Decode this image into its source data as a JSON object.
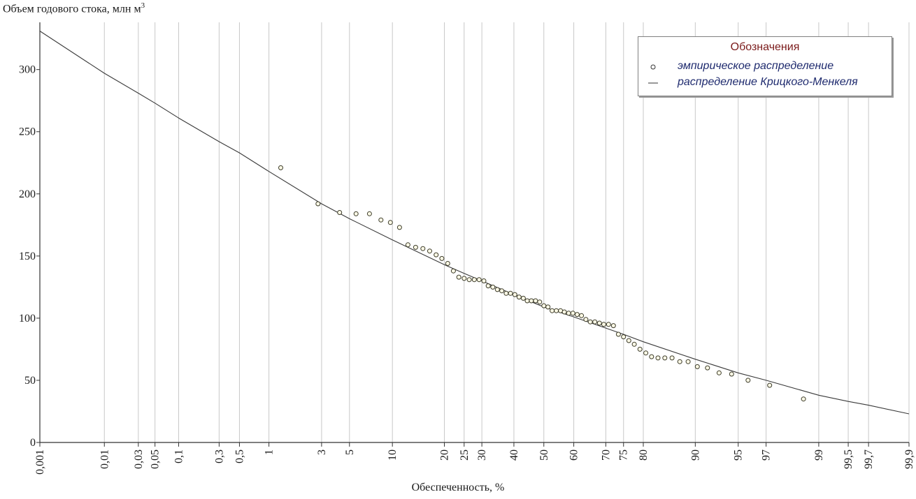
{
  "chart_data": {
    "type": "scatter",
    "ylabel": "Объем годового стока, млн  м",
    "ylabel_sup": "3",
    "xlabel": "Обеспеченность, %",
    "x_scale": "probability (normal)",
    "x_ticks": [
      "0,001",
      "0,01",
      "0,03",
      "0,05",
      "0,1",
      "0,3",
      "0,5",
      "1",
      "3",
      "5",
      "10",
      "20",
      "25",
      "30",
      "40",
      "50",
      "60",
      "70",
      "75",
      "80",
      "90",
      "95",
      "97",
      "99",
      "99,5",
      "99,7",
      "99,9"
    ],
    "x_tick_values": [
      0.001,
      0.01,
      0.03,
      0.05,
      0.1,
      0.3,
      0.5,
      1,
      3,
      5,
      10,
      20,
      25,
      30,
      40,
      50,
      60,
      70,
      75,
      80,
      90,
      95,
      97,
      99,
      99.5,
      99.7,
      99.9
    ],
    "y_ticks": [
      "0",
      "50",
      "100",
      "150",
      "200",
      "250",
      "300"
    ],
    "ylim": [
      0,
      338
    ],
    "grid": "vertical",
    "legend": {
      "title": "Обозначения",
      "position": "top-right",
      "entries": [
        "эмпирическое распределение",
        "распределение Крицкого-Менкеля"
      ]
    },
    "series": [
      {
        "name": "эмпирическое распределение",
        "kind": "points",
        "x": [
          1.3,
          2.8,
          4.2,
          5.6,
          7,
          8.4,
          9.7,
          11.1,
          12.5,
          13.9,
          15.3,
          16.7,
          18.1,
          19.4,
          20.8,
          22.2,
          23.6,
          25,
          26.4,
          27.8,
          29.2,
          30.6,
          31.9,
          33.3,
          34.7,
          36.1,
          37.5,
          38.9,
          40.3,
          41.7,
          43.1,
          44.4,
          45.8,
          47.2,
          48.6,
          50,
          51.4,
          52.8,
          54.2,
          55.6,
          56.9,
          58.3,
          59.7,
          61.1,
          62.5,
          63.9,
          65.3,
          66.7,
          68.1,
          69.4,
          70.8,
          72.2,
          73.6,
          75,
          76.4,
          77.8,
          79.2,
          80.6,
          81.9,
          83.3,
          84.7,
          86.1,
          87.5,
          88.9,
          90.3,
          91.7,
          93.1,
          94.4,
          95.8,
          97.2,
          98.6
        ],
        "y": [
          221,
          192,
          185,
          184,
          184,
          179,
          177,
          173,
          159,
          157,
          156,
          154,
          151,
          148,
          144,
          138,
          133,
          132,
          131,
          131,
          131,
          130,
          126,
          125,
          123,
          122,
          120,
          120,
          119,
          117,
          116,
          114,
          114,
          114,
          113,
          110,
          109,
          106,
          106,
          106,
          105,
          104,
          104,
          103,
          102,
          99,
          97,
          97,
          96,
          95,
          95,
          94,
          87,
          85,
          82,
          79,
          75,
          72,
          69,
          68,
          68,
          68,
          65,
          65,
          61,
          60,
          56,
          55,
          50,
          46,
          35
        ]
      },
      {
        "name": "распределение Крицкого-Менкеля",
        "kind": "line",
        "x": [
          0.001,
          0.01,
          0.03,
          0.05,
          0.1,
          0.3,
          0.5,
          1,
          3,
          5,
          10,
          20,
          25,
          30,
          40,
          50,
          60,
          70,
          75,
          80,
          90,
          95,
          97,
          99,
          99.5,
          99.7,
          99.9
        ],
        "y": [
          331,
          297,
          281,
          273,
          261,
          242,
          233,
          218,
          192,
          180,
          163,
          143,
          136,
          130,
          119,
          109,
          101,
          92,
          87,
          81,
          67,
          56,
          50,
          38,
          33,
          30,
          23
        ]
      }
    ]
  }
}
